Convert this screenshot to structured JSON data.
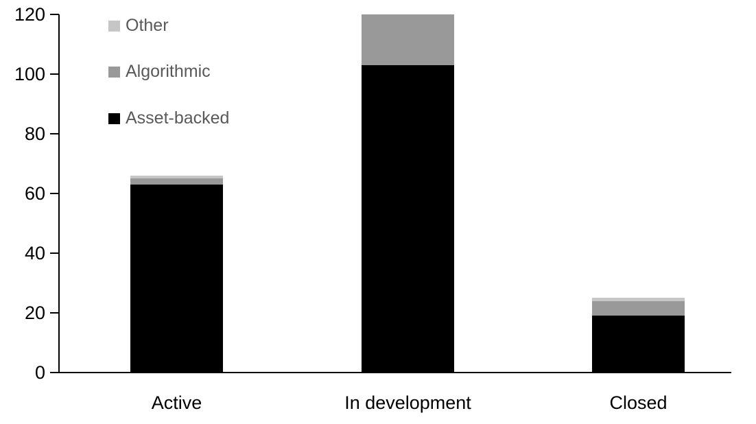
{
  "chart_data": {
    "type": "bar",
    "stacked": true,
    "title": "",
    "xlabel": "",
    "ylabel": "",
    "categories": [
      "Active",
      "In development",
      "Closed"
    ],
    "series": [
      {
        "name": "Asset-backed",
        "color": "#000000",
        "values": [
          63,
          103,
          19
        ]
      },
      {
        "name": "Algorithmic",
        "color": "#999999",
        "values": [
          2,
          17,
          5
        ]
      },
      {
        "name": "Other",
        "color": "#C6C6C6",
        "values": [
          1,
          0,
          1
        ]
      }
    ],
    "totals": [
      66,
      120,
      25
    ],
    "ylim": [
      0,
      120
    ],
    "yticks": [
      0,
      20,
      40,
      60,
      80,
      100,
      120
    ],
    "grid": false,
    "legend_position": "top-left",
    "legend_order": [
      "Other",
      "Algorithmic",
      "Asset-backed"
    ]
  },
  "legend": {
    "items": [
      {
        "label": "Other",
        "color": "#C6C6C6"
      },
      {
        "label": "Algorithmic",
        "color": "#999999"
      },
      {
        "label": "Asset-backed",
        "color": "#000000"
      }
    ]
  },
  "colors": {
    "background": "#FFFFFF",
    "axis": "#000000",
    "tick_label_text": "#000000",
    "legend_text": "#595959"
  }
}
